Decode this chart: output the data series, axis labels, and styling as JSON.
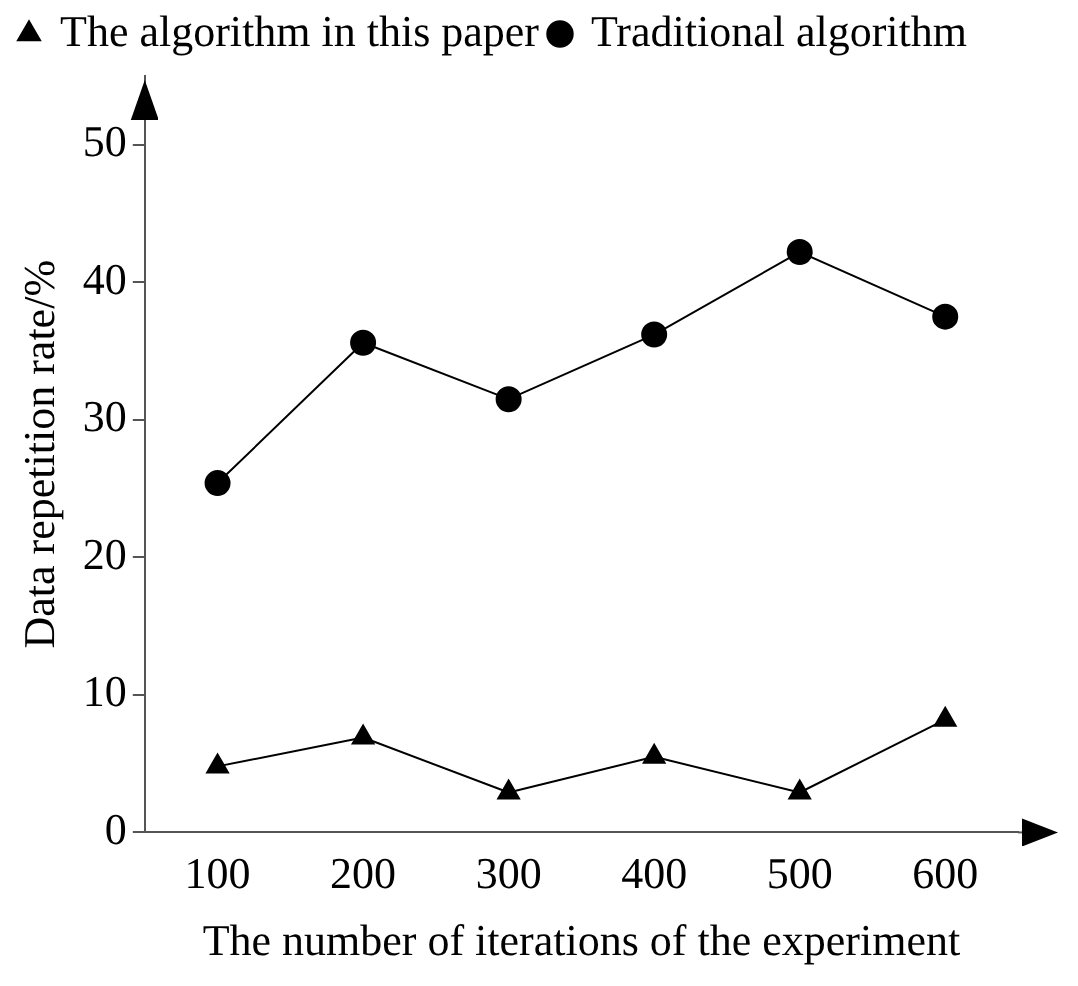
{
  "chart_data": {
    "type": "line",
    "xlabel": "The number of iterations of the experiment",
    "ylabel": "Data repetition rate/%",
    "categories": [
      "100",
      "200",
      "300",
      "400",
      "500",
      "600"
    ],
    "series": [
      {
        "name": "The algorithm in this paper",
        "color": "#000000",
        "marker": "triangle",
        "values": [
          4.8,
          6.9,
          2.9,
          5.5,
          2.9,
          8.2
        ]
      },
      {
        "name": "Traditional algorithm",
        "color": "#000000",
        "marker": "circle",
        "values": [
          25.4,
          35.6,
          31.5,
          36.2,
          42.2,
          37.5
        ]
      }
    ],
    "ylim": [
      0,
      55
    ],
    "yticks": [
      0,
      10,
      20,
      30,
      40,
      50
    ],
    "grid": false,
    "legend": "top left",
    "line_style": "solid"
  }
}
